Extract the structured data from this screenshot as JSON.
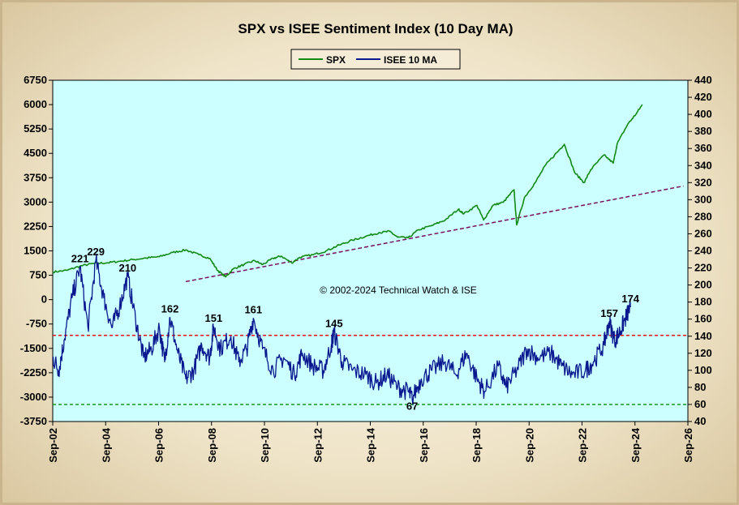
{
  "chart_data": {
    "type": "line",
    "title": "SPX vs ISEE Sentiment Index (10 Day MA)",
    "copyright": "© 2002-2024  Technical Watch  & ISE",
    "x_tick_labels": [
      "Sep-02",
      "Sep-04",
      "Sep-06",
      "Sep-08",
      "Sep-10",
      "Sep-12",
      "Sep-14",
      "Sep-16",
      "Sep-18",
      "Sep-20",
      "Sep-22",
      "Sep-24",
      "Sep-26"
    ],
    "x_range_years": [
      2002.67,
      2026.67
    ],
    "y_left": {
      "ticks": [
        6750,
        6000,
        5250,
        4500,
        3750,
        3000,
        2250,
        1500,
        750,
        0,
        -750,
        -1500,
        -2250,
        -3000,
        -3750
      ],
      "range": [
        -3750,
        6750
      ]
    },
    "y_right": {
      "ticks": [
        440,
        420,
        400,
        380,
        360,
        340,
        320,
        300,
        280,
        260,
        240,
        220,
        200,
        180,
        160,
        140,
        120,
        100,
        80,
        60,
        40
      ],
      "range": [
        40,
        440
      ]
    },
    "legend": [
      "SPX",
      "ISEE 10 MA"
    ],
    "colors": {
      "plot_bg": "#ccffff",
      "spx": "#138a13",
      "isee": "#0a1890",
      "trend": "#7a0f5f",
      "upper_ref": "#e81818",
      "lower_ref": "#1a9a1a"
    },
    "reference_lines": {
      "upper_isee": 141,
      "lower_isee": 60
    },
    "spx_trendline": {
      "start": [
        2007.7,
        204
      ],
      "end": [
        2026.5,
        316
      ]
    },
    "series": [
      {
        "name": "SPX",
        "axis": "left",
        "points": [
          [
            2002.67,
            850
          ],
          [
            2003.2,
            900
          ],
          [
            2003.7,
            1030
          ],
          [
            2004.2,
            1110
          ],
          [
            2004.7,
            1130
          ],
          [
            2005.2,
            1180
          ],
          [
            2005.7,
            1230
          ],
          [
            2006.2,
            1280
          ],
          [
            2006.7,
            1320
          ],
          [
            2007.2,
            1450
          ],
          [
            2007.7,
            1530
          ],
          [
            2008.2,
            1380
          ],
          [
            2008.6,
            1270
          ],
          [
            2008.9,
            900
          ],
          [
            2009.2,
            700
          ],
          [
            2009.5,
            950
          ],
          [
            2009.9,
            1080
          ],
          [
            2010.3,
            1200
          ],
          [
            2010.6,
            1080
          ],
          [
            2011.0,
            1270
          ],
          [
            2011.3,
            1340
          ],
          [
            2011.7,
            1130
          ],
          [
            2012.0,
            1300
          ],
          [
            2012.5,
            1380
          ],
          [
            2013.0,
            1500
          ],
          [
            2013.5,
            1680
          ],
          [
            2014.0,
            1830
          ],
          [
            2014.5,
            1950
          ],
          [
            2015.0,
            2060
          ],
          [
            2015.4,
            2100
          ],
          [
            2015.7,
            1920
          ],
          [
            2016.1,
            1900
          ],
          [
            2016.5,
            2150
          ],
          [
            2017.0,
            2280
          ],
          [
            2017.5,
            2450
          ],
          [
            2018.0,
            2780
          ],
          [
            2018.2,
            2640
          ],
          [
            2018.7,
            2900
          ],
          [
            2018.95,
            2450
          ],
          [
            2019.3,
            2900
          ],
          [
            2019.7,
            3000
          ],
          [
            2020.1,
            3380
          ],
          [
            2020.2,
            2300
          ],
          [
            2020.5,
            3150
          ],
          [
            2020.9,
            3600
          ],
          [
            2021.3,
            4150
          ],
          [
            2021.8,
            4600
          ],
          [
            2022.0,
            4780
          ],
          [
            2022.4,
            3900
          ],
          [
            2022.75,
            3600
          ],
          [
            2023.0,
            4000
          ],
          [
            2023.5,
            4450
          ],
          [
            2023.85,
            4200
          ],
          [
            2024.0,
            4800
          ],
          [
            2024.4,
            5400
          ],
          [
            2024.7,
            5700
          ],
          [
            2024.95,
            6000
          ]
        ]
      },
      {
        "name": "ISEE 10 MA",
        "axis": "right",
        "points": [
          [
            2002.67,
            115
          ],
          [
            2002.9,
            100
          ],
          [
            2003.1,
            135
          ],
          [
            2003.4,
            185
          ],
          [
            2003.7,
            221
          ],
          [
            2004.0,
            150
          ],
          [
            2004.3,
            229
          ],
          [
            2004.6,
            185
          ],
          [
            2004.9,
            150
          ],
          [
            2005.2,
            175
          ],
          [
            2005.5,
            210
          ],
          [
            2005.8,
            160
          ],
          [
            2006.1,
            115
          ],
          [
            2006.4,
            125
          ],
          [
            2006.7,
            150
          ],
          [
            2006.9,
            110
          ],
          [
            2007.1,
            162
          ],
          [
            2007.4,
            120
          ],
          [
            2007.7,
            90
          ],
          [
            2008.0,
            100
          ],
          [
            2008.3,
            130
          ],
          [
            2008.6,
            115
          ],
          [
            2008.75,
            151
          ],
          [
            2009.0,
            125
          ],
          [
            2009.4,
            140
          ],
          [
            2009.7,
            110
          ],
          [
            2010.0,
            125
          ],
          [
            2010.25,
            161
          ],
          [
            2010.6,
            125
          ],
          [
            2011.0,
            100
          ],
          [
            2011.4,
            115
          ],
          [
            2011.8,
            95
          ],
          [
            2012.1,
            120
          ],
          [
            2012.5,
            105
          ],
          [
            2012.9,
            100
          ],
          [
            2013.2,
            130
          ],
          [
            2013.3,
            145
          ],
          [
            2013.6,
            110
          ],
          [
            2014.0,
            100
          ],
          [
            2014.5,
            95
          ],
          [
            2014.9,
            85
          ],
          [
            2015.3,
            95
          ],
          [
            2015.7,
            80
          ],
          [
            2016.1,
            75
          ],
          [
            2016.25,
            67
          ],
          [
            2016.6,
            90
          ],
          [
            2017.0,
            100
          ],
          [
            2017.5,
            110
          ],
          [
            2017.9,
            95
          ],
          [
            2018.3,
            120
          ],
          [
            2018.7,
            90
          ],
          [
            2019.0,
            75
          ],
          [
            2019.5,
            105
          ],
          [
            2019.8,
            80
          ],
          [
            2020.2,
            100
          ],
          [
            2020.6,
            125
          ],
          [
            2021.0,
            115
          ],
          [
            2021.5,
            120
          ],
          [
            2021.9,
            105
          ],
          [
            2022.3,
            95
          ],
          [
            2022.8,
            100
          ],
          [
            2023.1,
            110
          ],
          [
            2023.5,
            130
          ],
          [
            2023.7,
            157
          ],
          [
            2023.9,
            135
          ],
          [
            2024.1,
            145
          ],
          [
            2024.3,
            160
          ],
          [
            2024.5,
            174
          ]
        ]
      }
    ],
    "annotations": [
      {
        "label": "221",
        "x": 2003.7,
        "y": 221
      },
      {
        "label": "229",
        "x": 2004.3,
        "y": 229
      },
      {
        "label": "210",
        "x": 2005.5,
        "y": 210
      },
      {
        "label": "162",
        "x": 2007.1,
        "y": 162
      },
      {
        "label": "151",
        "x": 2008.75,
        "y": 151
      },
      {
        "label": "161",
        "x": 2010.25,
        "y": 161
      },
      {
        "label": "145",
        "x": 2013.3,
        "y": 145
      },
      {
        "label": "67",
        "x": 2016.25,
        "y": 67,
        "below": true
      },
      {
        "label": "157",
        "x": 2023.7,
        "y": 157
      },
      {
        "label": "174",
        "x": 2024.5,
        "y": 174
      }
    ]
  }
}
